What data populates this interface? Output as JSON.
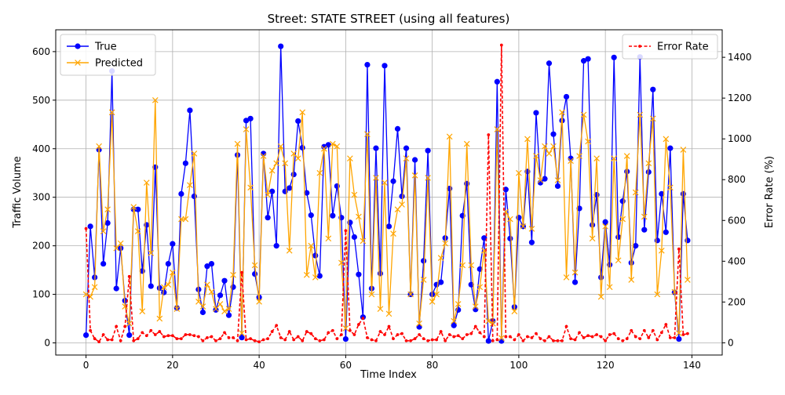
{
  "chart_data": {
    "type": "line",
    "title": "Street: STATE STREET (using all features)",
    "xlabel": "Time Index",
    "ylabel": "Traffic Volume",
    "y2label": "Error Rate (%)",
    "xlim": [
      -7,
      147
    ],
    "ylim": [
      -25,
      645
    ],
    "y2lim": [
      -60,
      1535
    ],
    "xticks": [
      0,
      20,
      40,
      60,
      80,
      100,
      120,
      140
    ],
    "yticks": [
      0,
      100,
      200,
      300,
      400,
      500,
      600
    ],
    "y2ticks": [
      0,
      200,
      400,
      600,
      800,
      1000,
      1200,
      1400
    ],
    "grid": true,
    "legend_left": "upper left",
    "legend_right": "upper right",
    "series": [
      {
        "name": "True",
        "axis": "left",
        "color": "#0000ff",
        "line": "solid",
        "marker": "circle",
        "values": [
          16,
          240,
          135,
          398,
          163,
          247,
          560,
          112,
          195,
          87,
          16,
          275,
          275,
          148,
          243,
          117,
          362,
          113,
          104,
          163,
          204,
          72,
          307,
          370,
          479,
          302,
          110,
          63,
          158,
          163,
          68,
          98,
          128,
          57,
          115,
          387,
          11,
          458,
          462,
          142,
          94,
          390,
          258,
          312,
          200,
          611,
          312,
          319,
          347,
          457,
          402,
          309,
          263,
          180,
          138,
          404,
          408,
          262,
          323,
          258,
          8,
          248,
          218,
          141,
          53,
          573,
          112,
          401,
          143,
          571,
          240,
          333,
          441,
          302,
          401,
          100,
          377,
          33,
          169,
          396,
          100,
          120,
          125,
          216,
          318,
          36,
          68,
          262,
          328,
          120,
          69,
          152,
          216,
          4,
          45,
          538,
          4,
          316,
          215,
          74,
          258,
          240,
          353,
          207,
          474,
          330,
          338,
          576,
          430,
          323,
          458,
          507,
          380,
          125,
          277,
          581,
          585,
          243,
          305,
          135,
          249,
          161,
          588,
          218,
          292,
          353,
          165,
          200,
          589,
          233,
          352,
          522,
          211,
          307,
          228,
          401,
          104,
          8,
          307,
          211
        ]
      },
      {
        "name": "Predicted",
        "axis": "left",
        "color": "#ffa500",
        "line": "solid",
        "marker": "x",
        "values": [
          100,
          95,
          115,
          405,
          230,
          275,
          475,
          195,
          205,
          75,
          40,
          280,
          230,
          65,
          330,
          185,
          500,
          50,
          115,
          120,
          145,
          70,
          255,
          255,
          325,
          390,
          85,
          75,
          120,
          105,
          70,
          80,
          65,
          70,
          140,
          410,
          20,
          440,
          320,
          160,
          85,
          385,
          305,
          355,
          370,
          405,
          370,
          190,
          390,
          380,
          475,
          140,
          200,
          135,
          350,
          400,
          215,
          410,
          405,
          165,
          30,
          380,
          305,
          260,
          210,
          430,
          100,
          340,
          70,
          330,
          60,
          225,
          275,
          285,
          380,
          100,
          345,
          40,
          130,
          340,
          85,
          100,
          175,
          205,
          425,
          45,
          80,
          160,
          410,
          160,
          75,
          115,
          190,
          45,
          40,
          440,
          10,
          270,
          255,
          65,
          350,
          240,
          420,
          235,
          385,
          335,
          405,
          390,
          405,
          335,
          475,
          135,
          375,
          145,
          385,
          470,
          415,
          215,
          380,
          95,
          240,
          115,
          380,
          170,
          255,
          385,
          130,
          310,
          470,
          260,
          370,
          462,
          100,
          190,
          420,
          320,
          105,
          20,
          398,
          130
        ]
      },
      {
        "name": "Error Rate",
        "axis": "right",
        "color": "#ff0000",
        "line": "dashed",
        "marker": "circle-small",
        "values": [
          560,
          60,
          20,
          5,
          40,
          15,
          15,
          80,
          10,
          80,
          325,
          10,
          20,
          50,
          35,
          60,
          40,
          55,
          30,
          35,
          35,
          20,
          20,
          40,
          40,
          35,
          30,
          10,
          25,
          30,
          10,
          20,
          50,
          25,
          25,
          10,
          345,
          15,
          20,
          10,
          5,
          15,
          20,
          55,
          85,
          25,
          15,
          55,
          15,
          30,
          10,
          55,
          45,
          20,
          10,
          15,
          50,
          60,
          20,
          40,
          550,
          60,
          40,
          90,
          120,
          25,
          15,
          10,
          55,
          40,
          80,
          20,
          40,
          45,
          10,
          10,
          20,
          40,
          20,
          10,
          15,
          15,
          55,
          10,
          40,
          30,
          35,
          20,
          40,
          45,
          80,
          50,
          30,
          1020,
          10,
          15,
          1460,
          30,
          30,
          15,
          40,
          10,
          30,
          25,
          45,
          20,
          10,
          30,
          10,
          10,
          10,
          80,
          20,
          15,
          50,
          25,
          35,
          30,
          40,
          30,
          10,
          40,
          45,
          20,
          10,
          20,
          60,
          30,
          20,
          60,
          25,
          60,
          15,
          50,
          90,
          25,
          25,
          460,
          40,
          45
        ]
      }
    ]
  }
}
